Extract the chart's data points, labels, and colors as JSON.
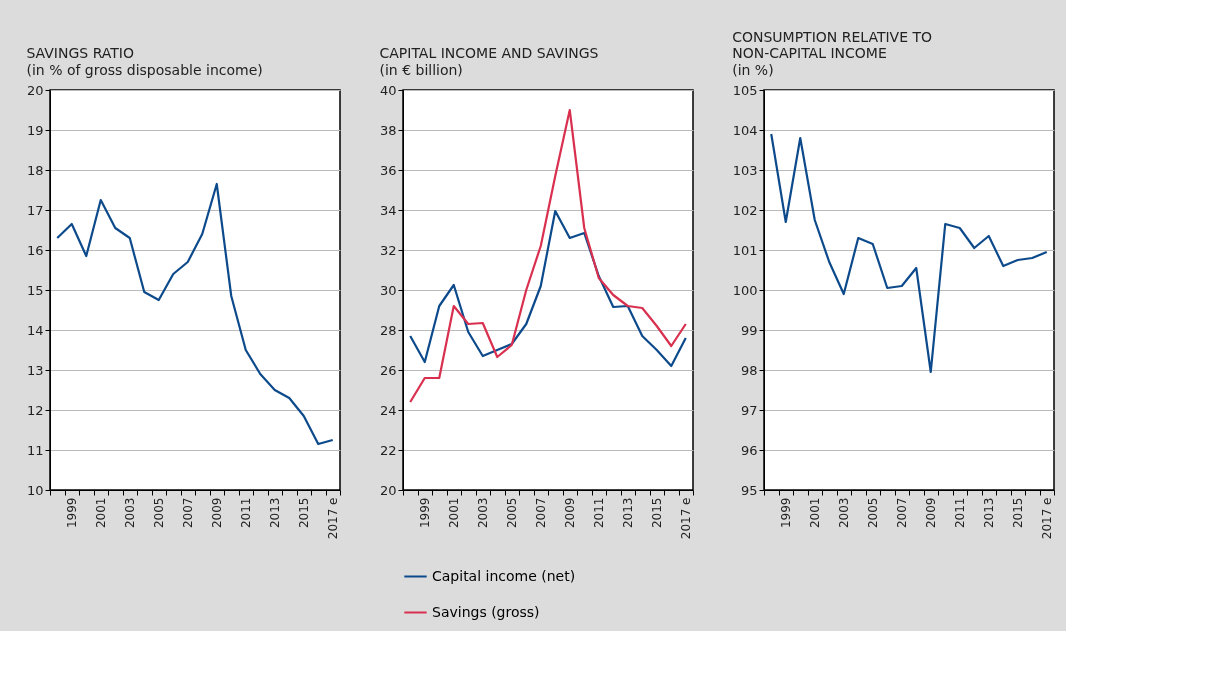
{
  "chart_data": [
    {
      "type": "line",
      "title": "SAVINGS RATIO",
      "subtitle": "(in % of gross disposable income)",
      "categories": [
        null,
        "1999",
        null,
        "2001",
        null,
        "2003",
        null,
        "2005",
        null,
        "2007",
        null,
        "2009",
        null,
        "2011",
        null,
        "2013",
        null,
        "2015",
        null,
        "2017 e"
      ],
      "series": [
        {
          "color": "#0d4a8c",
          "values": [
            16.3,
            16.65,
            15.85,
            17.25,
            16.55,
            16.3,
            14.95,
            14.75,
            15.4,
            15.7,
            16.4,
            17.65,
            14.85,
            13.5,
            12.9,
            12.5,
            12.3,
            11.85,
            11.15,
            11.25
          ]
        }
      ],
      "ylim": [
        10,
        20
      ],
      "yticks": [
        10,
        11,
        12,
        13,
        14,
        15,
        16,
        17,
        18,
        19,
        20
      ],
      "grid": "y",
      "legend": false
    },
    {
      "type": "line",
      "title": "CAPITAL INCOME AND SAVINGS",
      "subtitle": "(in € billion)",
      "categories": [
        null,
        "1999",
        null,
        "2001",
        null,
        "2003",
        null,
        "2005",
        null,
        "2007",
        null,
        "2009",
        null,
        "2011",
        null,
        "2013",
        null,
        "2015",
        null,
        "2017 e"
      ],
      "series": [
        {
          "name": "Capital income (net)",
          "color": "#0d4a8c",
          "values": [
            27.7,
            26.4,
            29.2,
            30.25,
            27.9,
            26.7,
            27.0,
            27.3,
            28.3,
            30.2,
            33.95,
            32.6,
            32.85,
            30.7,
            29.15,
            29.2,
            27.7,
            27.0,
            26.2,
            27.6
          ]
        },
        {
          "name": "Savings (gross)",
          "color": "#d9304f",
          "values": [
            24.4,
            25.6,
            25.6,
            29.2,
            28.3,
            28.35,
            26.65,
            27.25,
            30.0,
            32.2,
            35.7,
            39.0,
            33.1,
            30.6,
            29.75,
            29.2,
            29.1,
            28.2,
            27.2,
            28.3
          ]
        }
      ],
      "ylim": [
        20,
        40
      ],
      "yticks": [
        20,
        22,
        24,
        26,
        28,
        30,
        32,
        34,
        36,
        38,
        40
      ],
      "grid": "y",
      "legend": "bottom"
    },
    {
      "type": "line",
      "title": "CONSUMPTION RELATIVE TO NON-CAPITAL INCOME",
      "subtitle": "(in %)",
      "categories": [
        null,
        "1999",
        null,
        "2001",
        null,
        "2003",
        null,
        "2005",
        null,
        "2007",
        null,
        "2009",
        null,
        "2011",
        null,
        "2013",
        null,
        "2015",
        null,
        "2017 e"
      ],
      "series": [
        {
          "color": "#0d4a8c",
          "values": [
            103.9,
            101.7,
            103.8,
            101.75,
            100.7,
            99.9,
            101.3,
            101.15,
            100.05,
            100.1,
            100.55,
            97.95,
            101.65,
            101.55,
            101.05,
            101.35,
            100.6,
            100.75,
            100.8,
            100.95
          ]
        }
      ],
      "ylim": [
        95,
        105
      ],
      "yticks": [
        95,
        96,
        97,
        98,
        99,
        100,
        101,
        102,
        103,
        104,
        105
      ],
      "grid": "y",
      "legend": false
    }
  ]
}
